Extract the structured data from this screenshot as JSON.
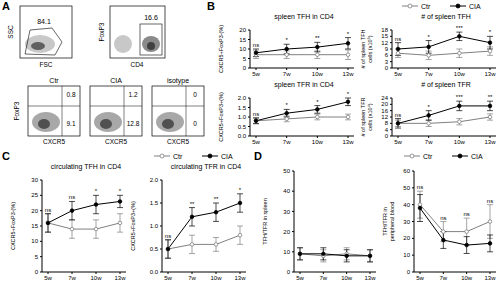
{
  "panels": [
    "A",
    "B",
    "C",
    "D"
  ],
  "flow_cytometry": {
    "row1": [
      {
        "x_label": "FSC",
        "y_label": "SSC",
        "gate_value": 84.1
      },
      {
        "x_label": "CD4",
        "y_label": "FoxP3",
        "gate_value": 16.6
      }
    ],
    "row2": {
      "x_label": "CXCR5",
      "y_label": "FoxP3",
      "plots": [
        {
          "title": "Ctr",
          "upper_right": 0.8,
          "lower_right": 9.1
        },
        {
          "title": "CIA",
          "upper_right": 1.2,
          "lower_right": 12.8
        },
        {
          "title": "isotype",
          "upper_right": 0,
          "lower_right": 0
        }
      ]
    }
  },
  "chart_data": [
    {
      "type": "line",
      "title": "spleen TFH in CD4",
      "y_label": "CXCR5+FoxP3-(%)",
      "categories": [
        "5w",
        "7w",
        "10w",
        "13w"
      ],
      "series": [
        {
          "name": "Ctr",
          "color": "#808080",
          "marker": "open_circle",
          "values": [
            7,
            7,
            7,
            7
          ],
          "errors": [
            2,
            2,
            2,
            2.5
          ]
        },
        {
          "name": "CIA",
          "color": "#000000",
          "marker": "circle",
          "values": [
            8,
            10,
            11,
            13
          ],
          "errors": [
            2,
            2.5,
            2.5,
            3
          ]
        }
      ],
      "ylim": [
        0,
        20
      ],
      "yticks": [
        0,
        5,
        10,
        15,
        20
      ],
      "annotations": [
        "ns",
        "*",
        "**",
        "*"
      ],
      "grid": false
    },
    {
      "type": "line",
      "title": "# of spleen TFH",
      "y_label": "# of spleen TFH cells (x10⁵)",
      "categories": [
        "5w",
        "7w",
        "10w",
        "13w"
      ],
      "series": [
        {
          "name": "Ctr",
          "color": "#808080",
          "marker": "open_circle",
          "values": [
            7,
            6,
            7,
            8
          ],
          "errors": [
            2,
            2,
            2,
            2
          ]
        },
        {
          "name": "CIA",
          "color": "#000000",
          "marker": "circle",
          "values": [
            9,
            10,
            15,
            12
          ],
          "errors": [
            3,
            3,
            2,
            3
          ]
        }
      ],
      "ylim": [
        0,
        18
      ],
      "yticks": [
        0,
        3,
        6,
        9,
        12,
        15,
        18
      ],
      "annotations": [
        "ns",
        "*",
        "***",
        "*"
      ],
      "grid": false
    },
    {
      "type": "line",
      "title": "spleen TFR in CD4",
      "y_label": "CXCR5+FoxP3+(%)",
      "categories": [
        "5w",
        "7w",
        "10w",
        "13w"
      ],
      "series": [
        {
          "name": "Ctr",
          "color": "#808080",
          "marker": "open_circle",
          "values": [
            0.8,
            0.9,
            1.0,
            1.0
          ],
          "errors": [
            0.15,
            0.15,
            0.15,
            0.15
          ]
        },
        {
          "name": "CIA",
          "color": "#000000",
          "marker": "circle",
          "values": [
            0.8,
            1.2,
            1.4,
            1.8
          ],
          "errors": [
            0.15,
            0.2,
            0.2,
            0.2
          ]
        }
      ],
      "ylim": [
        0,
        2
      ],
      "yticks": [
        {
          "value": 0,
          "label": "0.0"
        },
        {
          "value": 0.5,
          "label": "0.5"
        },
        {
          "value": 1,
          "label": "1.0"
        },
        {
          "value": 1.5,
          "label": "1.5"
        },
        {
          "value": 2,
          "label": "2.0"
        }
      ],
      "annotations": [
        "ns",
        "*",
        "*",
        "*"
      ],
      "grid": false
    },
    {
      "type": "line",
      "title": "# of spleen TFR",
      "y_label": "# of spleen TFR cells (x10⁴)",
      "categories": [
        "5w",
        "7w",
        "10w",
        "13w"
      ],
      "series": [
        {
          "name": "Ctr",
          "color": "#808080",
          "marker": "open_circle",
          "values": [
            8,
            8,
            9,
            12
          ],
          "errors": [
            2,
            2,
            2,
            2
          ]
        },
        {
          "name": "CIA",
          "color": "#000000",
          "marker": "circle",
          "values": [
            8,
            13,
            19,
            19
          ],
          "errors": [
            3,
            3,
            3,
            3
          ]
        }
      ],
      "ylim": [
        0,
        24
      ],
      "yticks": [
        0,
        4,
        8,
        12,
        16,
        20,
        24
      ],
      "annotations": [
        "ns",
        "*",
        "***",
        "**"
      ],
      "grid": false
    },
    {
      "type": "line",
      "title": "circulating TFH in CD4",
      "y_label": "CXCR5+FoxP3-(%)",
      "categories": [
        "5w",
        "7w",
        "10w",
        "13w"
      ],
      "series": [
        {
          "name": "Ctr",
          "color": "#808080",
          "marker": "open_circle",
          "values": [
            16,
            14,
            14,
            16
          ],
          "errors": [
            3,
            3,
            3,
            3
          ]
        },
        {
          "name": "CIA",
          "color": "#000000",
          "marker": "circle",
          "values": [
            16,
            20,
            22,
            23
          ],
          "errors": [
            3,
            3,
            3,
            2
          ]
        }
      ],
      "ylim": [
        0,
        30
      ],
      "yticks": [
        0,
        5,
        10,
        15,
        20,
        25,
        30
      ],
      "annotations": [
        "ns",
        "ns",
        "*",
        "*"
      ],
      "grid": false
    },
    {
      "type": "line",
      "title": "circulating TFR in CD4",
      "y_label": "CXCR5+FoxP3+(%)",
      "categories": [
        "5w",
        "7w",
        "10w",
        "13w"
      ],
      "series": [
        {
          "name": "Ctr",
          "color": "#808080",
          "marker": "open_circle",
          "values": [
            0.5,
            0.6,
            0.6,
            0.8
          ],
          "errors": [
            0.2,
            0.2,
            0.15,
            0.2
          ]
        },
        {
          "name": "CIA",
          "color": "#000000",
          "marker": "circle",
          "values": [
            0.5,
            1.2,
            1.3,
            1.5
          ],
          "errors": [
            0.2,
            0.2,
            0.2,
            0.2
          ]
        }
      ],
      "ylim": [
        0,
        2
      ],
      "yticks": [
        {
          "value": 0,
          "label": "0.0"
        },
        {
          "value": 0.5,
          "label": "0.5"
        },
        {
          "value": 1,
          "label": "1.0"
        },
        {
          "value": 1.5,
          "label": "1.5"
        },
        {
          "value": 2,
          "label": "2.0"
        }
      ],
      "annotations": [
        "ns",
        "**",
        "**",
        "*"
      ],
      "grid": false
    },
    {
      "type": "line",
      "y_label": "TFH/TFR in spleen",
      "categories": [
        "5w",
        "7w",
        "10w",
        "13w"
      ],
      "series": [
        {
          "name": "Ctr",
          "color": "#808080",
          "marker": "open_circle",
          "values": [
            9,
            8,
            9,
            8
          ],
          "errors": [
            3,
            3,
            3,
            3
          ]
        },
        {
          "name": "CIA",
          "color": "#000000",
          "marker": "circle",
          "values": [
            9,
            9,
            8,
            8
          ],
          "errors": [
            3,
            3,
            3,
            3
          ]
        }
      ],
      "ylim": [
        0,
        50
      ],
      "yticks": [
        0,
        10,
        20,
        30,
        40,
        50
      ],
      "grid": false
    },
    {
      "type": "line",
      "y_label": "TFH/TFR in peripheral blood",
      "categories": [
        "5w",
        "7w",
        "10w",
        "13w"
      ],
      "series": [
        {
          "name": "Ctr",
          "color": "#808080",
          "marker": "open_circle",
          "values": [
            40,
            24,
            24,
            30
          ],
          "errors": [
            8,
            6,
            8,
            10
          ]
        },
        {
          "name": "CIA",
          "color": "#000000",
          "marker": "circle",
          "values": [
            38,
            19,
            16,
            17
          ],
          "errors": [
            8,
            5,
            5,
            5
          ]
        }
      ],
      "ylim": [
        0,
        60
      ],
      "yticks": [
        0,
        10,
        20,
        30,
        40,
        50,
        60
      ],
      "annotations": [
        "ns",
        "ns",
        "ns",
        "ns"
      ],
      "grid": false
    }
  ]
}
